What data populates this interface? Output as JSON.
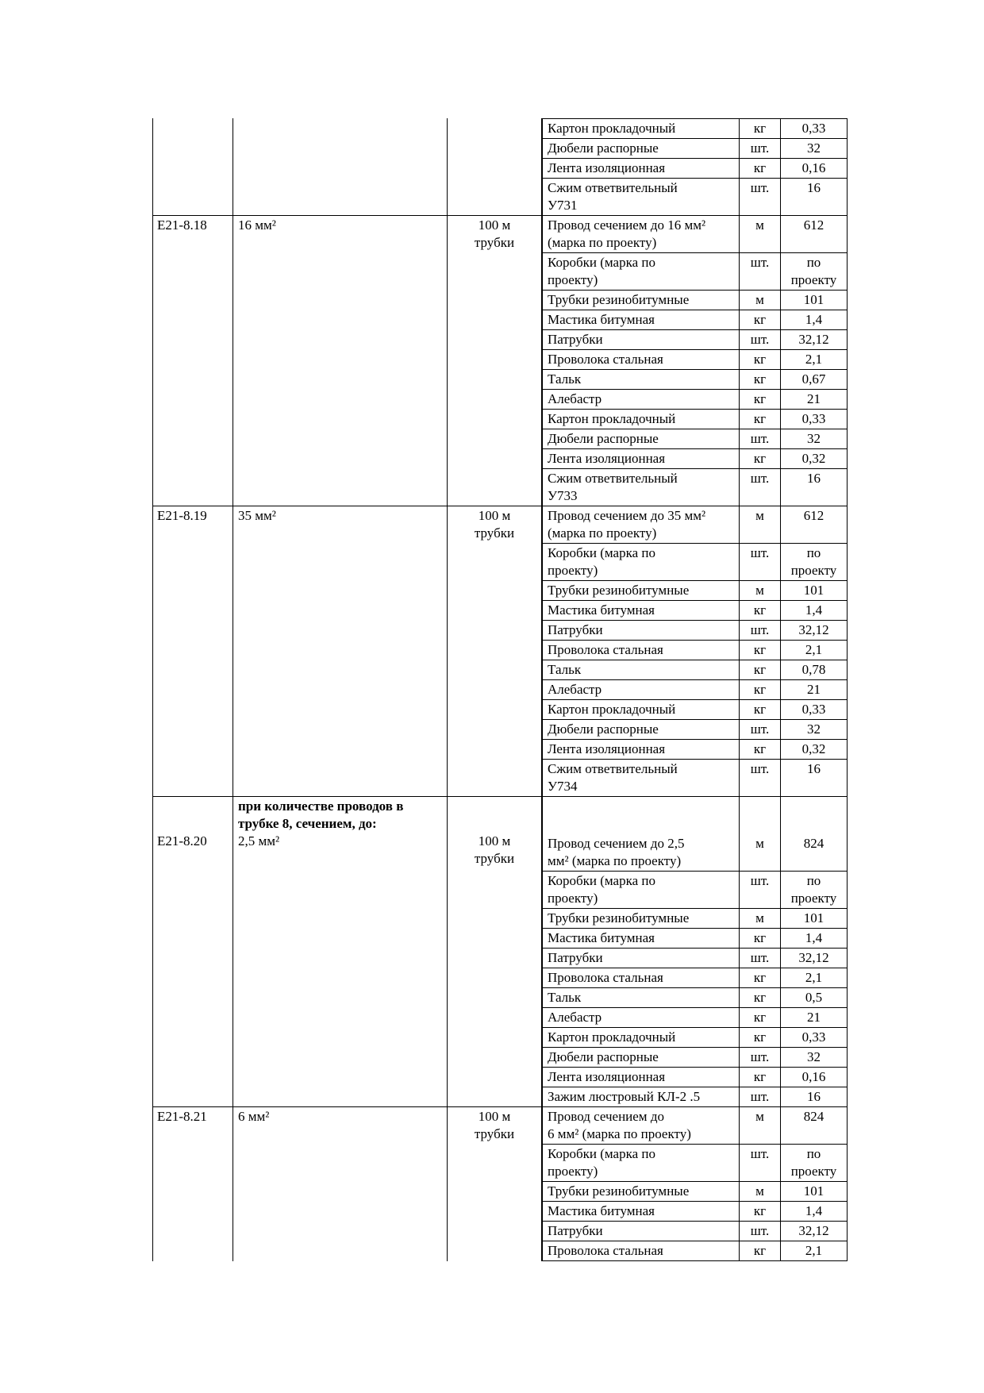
{
  "page": {
    "kind": "norms-table-continuation"
  },
  "colors": {
    "background": "#ffffff",
    "text": "#000000",
    "border": "#000000"
  },
  "table": {
    "blocks": [
      {
        "code": "",
        "description": "",
        "unit": "",
        "materials": [
          {
            "name": "Картон прокладочный",
            "unit": "кг",
            "qty": "0,33"
          },
          {
            "name": "Дюбели распорные",
            "unit": "шт.",
            "qty": "32"
          },
          {
            "name": "Лента изоляционная",
            "unit": "кг",
            "qty": "0,16"
          },
          {
            "name": "Сжим ответвительный\nУ731",
            "unit": "шт.",
            "qty": "16"
          }
        ]
      },
      {
        "code": "Е21-8.18",
        "description": "16 мм²",
        "unit": "100 м\nтрубки",
        "materials": [
          {
            "name": "Провод сечением до 16 мм²\n(марка по проекту)",
            "unit": "м",
            "qty": "612"
          },
          {
            "name": "Коробки (марка по\nпроекту)",
            "unit": "шт.",
            "qty": "по\nпроекту"
          },
          {
            "name": "Трубки резинобитумные",
            "unit": "м",
            "qty": "101"
          },
          {
            "name": "Мастика битумная",
            "unit": "кг",
            "qty": "1,4"
          },
          {
            "name": "Патрубки",
            "unit": "шт.",
            "qty": "32,12"
          },
          {
            "name": "Проволока стальная",
            "unit": "кг",
            "qty": "2,1"
          },
          {
            "name": "Тальк",
            "unit": "кг",
            "qty": "0,67"
          },
          {
            "name": "Алебастр",
            "unit": "кг",
            "qty": "21"
          },
          {
            "name": "Картон прокладочный",
            "unit": "кг",
            "qty": "0,33"
          },
          {
            "name": "Дюбели распорные",
            "unit": "шт.",
            "qty": "32"
          },
          {
            "name": "Лента изоляционная",
            "unit": "кг",
            "qty": "0,32"
          },
          {
            "name": "Сжим ответвительный\nУ733",
            "unit": "шт.",
            "qty": "16"
          }
        ]
      },
      {
        "code": "Е21-8.19",
        "description": "35 мм²",
        "unit": "100 м\nтрубки",
        "materials": [
          {
            "name": "Провод сечением до 35 мм²\n(марка по проекту)",
            "unit": "м",
            "qty": "612"
          },
          {
            "name": "Коробки (марка по\nпроекту)",
            "unit": "шт.",
            "qty": "по\nпроекту"
          },
          {
            "name": "Трубки резинобитумные",
            "unit": "м",
            "qty": "101"
          },
          {
            "name": "Мастика битумная",
            "unit": "кг",
            "qty": "1,4"
          },
          {
            "name": "Патрубки",
            "unit": "шт.",
            "qty": "32,12"
          },
          {
            "name": "Проволока стальная",
            "unit": "кг",
            "qty": "2,1"
          },
          {
            "name": "Тальк",
            "unit": "кг",
            "qty": "0,78"
          },
          {
            "name": "Алебастр",
            "unit": "кг",
            "qty": "21"
          },
          {
            "name": "Картон прокладочный",
            "unit": "кг",
            "qty": "0,33"
          },
          {
            "name": "Дюбели распорные",
            "unit": "шт.",
            "qty": "32"
          },
          {
            "name": "Лента изоляционная",
            "unit": "кг",
            "qty": "0,32"
          },
          {
            "name": "Сжим ответвительный\nУ734",
            "unit": "шт.",
            "qty": "16"
          }
        ]
      },
      {
        "code": "Е21-8.20",
        "section_header": "при количестве проводов в\nтрубке 8, сечением, до:",
        "description": "2,5 мм²",
        "unit": "100 м\nтрубки",
        "materials": [
          {
            "name": "Провод сечением до 2,5\nмм² (марка по проекту)",
            "unit": "м",
            "qty": "824",
            "offset": true
          },
          {
            "name": "Коробки (марка по\nпроекту)",
            "unit": "шт.",
            "qty": "по\nпроекту"
          },
          {
            "name": "Трубки резинобитумные",
            "unit": "м",
            "qty": "101"
          },
          {
            "name": "Мастика битумная",
            "unit": "кг",
            "qty": "1,4"
          },
          {
            "name": "Патрубки",
            "unit": "шт.",
            "qty": "32,12"
          },
          {
            "name": "Проволока стальная",
            "unit": "кг",
            "qty": "2,1"
          },
          {
            "name": "Тальк",
            "unit": "кг",
            "qty": "0,5"
          },
          {
            "name": "Алебастр",
            "unit": "кг",
            "qty": "21"
          },
          {
            "name": "Картон прокладочный",
            "unit": "кг",
            "qty": "0,33"
          },
          {
            "name": "Дюбели распорные",
            "unit": "шт.",
            "qty": "32"
          },
          {
            "name": "Лента изоляционная",
            "unit": "кг",
            "qty": "0,16"
          },
          {
            "name": "Зажим люстровый КЛ-2 .5",
            "unit": "шт.",
            "qty": "16"
          }
        ]
      },
      {
        "code": "Е21-8.21",
        "description": "6 мм²",
        "unit": "100 м\nтрубки",
        "materials": [
          {
            "name": "Провод сечением до\n6 мм² (марка по проекту)",
            "unit": "м",
            "qty": "824"
          },
          {
            "name": "Коробки (марка по\nпроекту)",
            "unit": "шт.",
            "qty": "по\nпроекту"
          },
          {
            "name": "Трубки резинобитумные",
            "unit": "м",
            "qty": "101"
          },
          {
            "name": "Мастика битумная",
            "unit": "кг",
            "qty": "1,4"
          },
          {
            "name": "Патрубки",
            "unit": "шт.",
            "qty": "32,12"
          },
          {
            "name": "Проволока стальная",
            "unit": "кг",
            "qty": "2,1"
          }
        ]
      }
    ]
  }
}
